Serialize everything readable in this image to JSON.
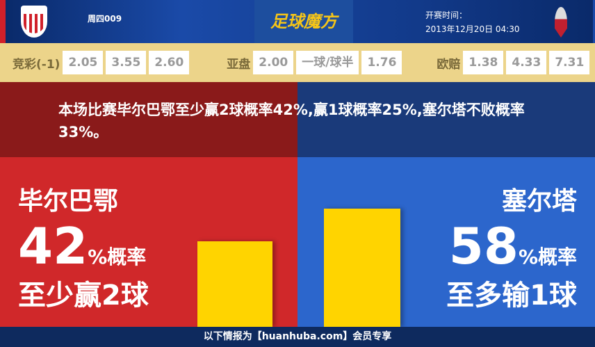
{
  "header": {
    "match_id": "周四009",
    "brand": "足球魔方",
    "kickoff_label": "开赛时间：",
    "kickoff_time": "2013年12月20日 04:30"
  },
  "odds": {
    "jingcai": {
      "label": "竞彩(-1)",
      "values": [
        "2.05",
        "3.55",
        "2.60"
      ]
    },
    "asian": {
      "label": "亚盘",
      "values": [
        "2.00",
        "一球/球半",
        "1.76"
      ]
    },
    "euro": {
      "label": "欧赔",
      "values": [
        "1.38",
        "4.33",
        "7.31"
      ]
    }
  },
  "summary": "本场比赛毕尔巴鄂至少赢2球概率42%,赢1球概率25%,塞尔塔不败概率33%。",
  "home": {
    "name": "毕尔巴鄂",
    "percent": "42",
    "percent_suffix": "%概率",
    "result": "至少赢2球",
    "color": "#d0282a"
  },
  "away": {
    "name": "塞尔塔",
    "percent": "58",
    "percent_suffix": "%概率",
    "result": "至多输1球",
    "color": "#2c66cc"
  },
  "footer": "以下情报为【huanhuba.com】会员专享"
}
